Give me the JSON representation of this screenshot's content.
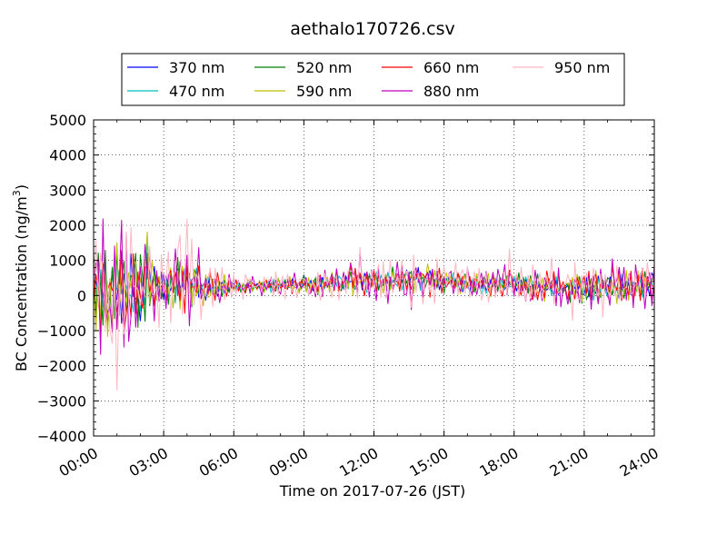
{
  "chart_data": {
    "type": "line",
    "title": "aethalo170726.csv",
    "xlabel": "Time on 2017-07-26 (JST)",
    "ylabel": "BC Concentration (ng/m",
    "ylabel_sup": "3",
    "ylabel_close": ")",
    "xlim": [
      0,
      24
    ],
    "ylim": [
      -4000,
      5000
    ],
    "yticks": [
      5000,
      4000,
      3000,
      2000,
      1000,
      0,
      -1000,
      -2000,
      -3000,
      -4000
    ],
    "ytick_labels": [
      "5000",
      "4000",
      "3000",
      "2000",
      "1000",
      "0",
      "−1000",
      "−2000",
      "−3000",
      "−4000"
    ],
    "xticks": [
      0,
      3,
      6,
      9,
      12,
      15,
      18,
      21,
      24
    ],
    "xtick_labels": [
      "00:00",
      "03:00",
      "06:00",
      "09:00",
      "12:00",
      "15:00",
      "18:00",
      "21:00",
      "24:00"
    ],
    "grid": true,
    "legend_position": "top-center",
    "series": [
      {
        "name": "370 nm",
        "color": "#0000ff",
        "scale": 0.55,
        "phase": 0.3
      },
      {
        "name": "470 nm",
        "color": "#00bfbf",
        "scale": 0.62,
        "phase": 1.1
      },
      {
        "name": "520 nm",
        "color": "#008000",
        "scale": 0.7,
        "phase": 2.0
      },
      {
        "name": "590 nm",
        "color": "#bfbf00",
        "scale": 0.78,
        "phase": 2.7
      },
      {
        "name": "660 nm",
        "color": "#ff0000",
        "scale": 0.85,
        "phase": 3.6
      },
      {
        "name": "880 nm",
        "color": "#bf00bf",
        "scale": 1.2,
        "phase": 4.4
      },
      {
        "name": "950 nm",
        "color": "#ffb6c1",
        "scale": 1.3,
        "phase": 5.2
      }
    ],
    "time_step_hours": 0.1,
    "envelope": [
      {
        "t": 0.0,
        "amp": 1800,
        "mean": 200
      },
      {
        "t": 1.0,
        "amp": 2400,
        "mean": 200
      },
      {
        "t": 2.0,
        "amp": 1800,
        "mean": 100
      },
      {
        "t": 3.0,
        "amp": 800,
        "mean": 300
      },
      {
        "t": 4.0,
        "amp": 1200,
        "mean": 300
      },
      {
        "t": 5.0,
        "amp": 700,
        "mean": 250
      },
      {
        "t": 6.0,
        "amp": 300,
        "mean": 250
      },
      {
        "t": 9.0,
        "amp": 350,
        "mean": 300
      },
      {
        "t": 12.0,
        "amp": 550,
        "mean": 400
      },
      {
        "t": 14.0,
        "amp": 650,
        "mean": 450
      },
      {
        "t": 16.0,
        "amp": 500,
        "mean": 350
      },
      {
        "t": 18.0,
        "amp": 550,
        "mean": 300
      },
      {
        "t": 21.0,
        "amp": 700,
        "mean": 200
      },
      {
        "t": 24.0,
        "amp": 650,
        "mean": 300
      }
    ]
  }
}
